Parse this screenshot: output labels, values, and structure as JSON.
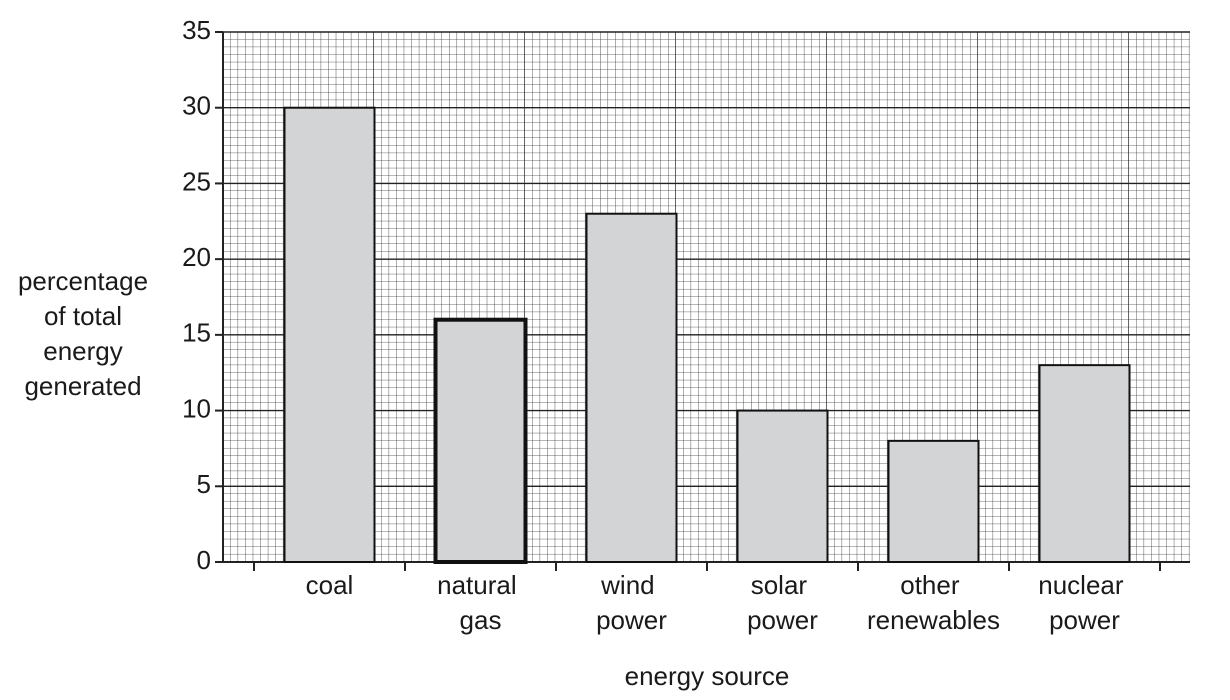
{
  "chart_data": {
    "type": "bar",
    "ylabel": [
      "percentage",
      "of total",
      "energy",
      "generated"
    ],
    "xlabel": "energy source",
    "categories": [
      "coal",
      "natural gas",
      "wind power",
      "solar power",
      "other renewables",
      "nuclear power"
    ],
    "values": [
      30,
      16,
      23,
      10,
      8,
      13
    ],
    "color": "#d3d4d6",
    "highlight": 1,
    "ylim": [
      0,
      35
    ],
    "yticks": [
      0,
      5,
      10,
      15,
      20,
      25,
      30,
      35
    ],
    "grid": true
  }
}
